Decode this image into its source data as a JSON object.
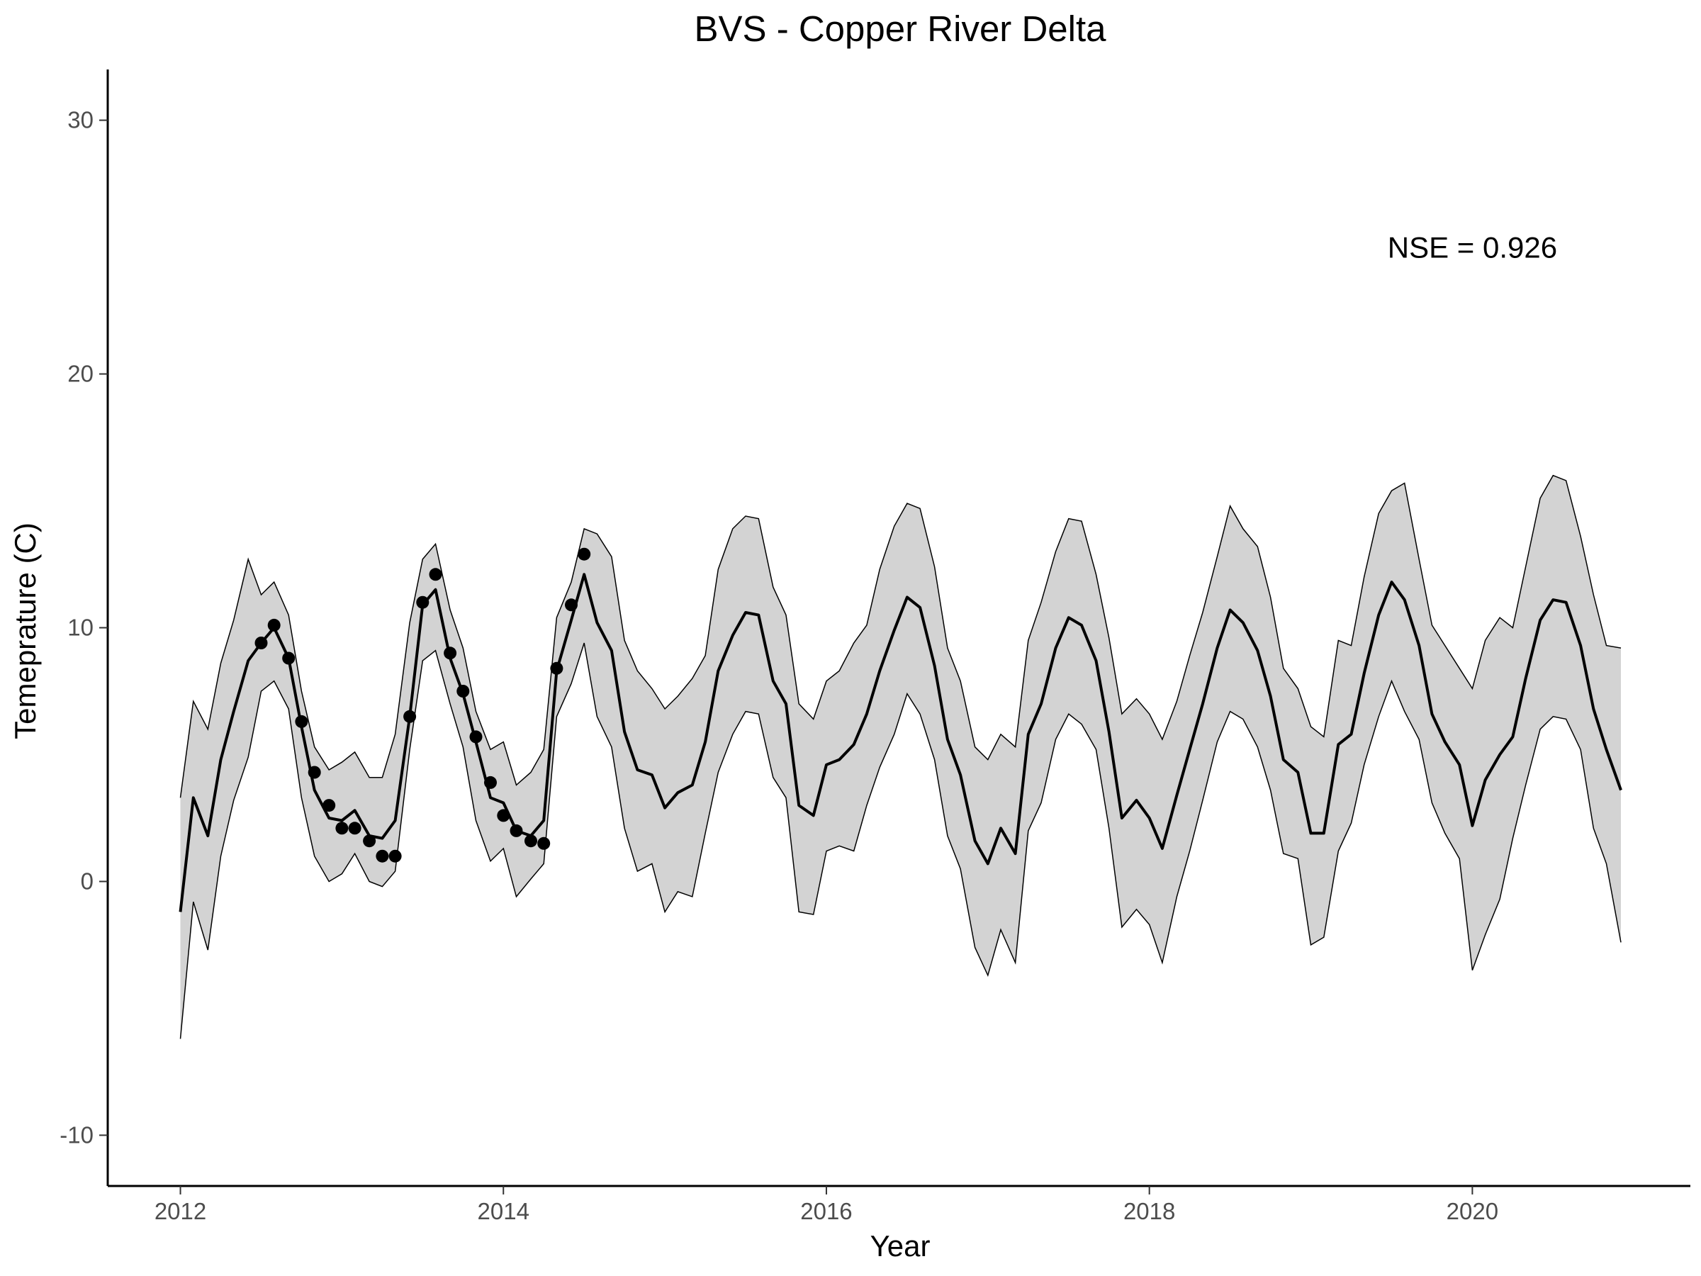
{
  "chart_data": {
    "type": "line",
    "title": "BVS - Copper River Delta",
    "xlabel": "Year",
    "ylabel": "Temeprature (C)",
    "annotation": {
      "text": "NSE = 0.926",
      "x": 2020.0,
      "y": 25
    },
    "xlim": [
      2011.55,
      2021.35
    ],
    "ylim": [
      -12,
      32
    ],
    "xticks": [
      2012,
      2014,
      2016,
      2018,
      2020
    ],
    "yticks": [
      -10,
      0,
      10,
      20,
      30
    ],
    "grid": false,
    "colors": {
      "line": "#000000",
      "band_fill": "#d3d3d3",
      "band_edge": "#000000",
      "points": "#000000"
    },
    "series": [
      {
        "role": "prediction-interval",
        "x": [
          2012.0,
          2012.08,
          2012.17,
          2012.25,
          2012.33,
          2012.42,
          2012.5,
          2012.58,
          2012.67,
          2012.75,
          2012.83,
          2012.92,
          2013.0,
          2013.08,
          2013.17,
          2013.25,
          2013.33,
          2013.42,
          2013.5,
          2013.58,
          2013.67,
          2013.75,
          2013.83,
          2013.92,
          2014.0,
          2014.08,
          2014.17,
          2014.25,
          2014.33,
          2014.42,
          2014.5,
          2014.58,
          2014.67,
          2014.75,
          2014.83,
          2014.92,
          2015.0,
          2015.08,
          2015.17,
          2015.25,
          2015.33,
          2015.42,
          2015.5,
          2015.58,
          2015.67,
          2015.75,
          2015.83,
          2015.92,
          2016.0,
          2016.08,
          2016.17,
          2016.25,
          2016.33,
          2016.42,
          2016.5,
          2016.58,
          2016.67,
          2016.75,
          2016.83,
          2016.92,
          2017.0,
          2017.08,
          2017.17,
          2017.25,
          2017.33,
          2017.42,
          2017.5,
          2017.58,
          2017.67,
          2017.75,
          2017.83,
          2017.92,
          2018.0,
          2018.08,
          2018.17,
          2018.25,
          2018.33,
          2018.42,
          2018.5,
          2018.58,
          2018.67,
          2018.75,
          2018.83,
          2018.92,
          2019.0,
          2019.08,
          2019.17,
          2019.25,
          2019.33,
          2019.42,
          2019.5,
          2019.58,
          2019.67,
          2019.75,
          2019.83,
          2019.92,
          2020.0,
          2020.08,
          2020.17,
          2020.25,
          2020.33,
          2020.42,
          2020.5,
          2020.58,
          2020.67,
          2020.75,
          2020.83,
          2020.92
        ],
        "upper": [
          3.3,
          7.1,
          6.0,
          8.6,
          10.3,
          12.7,
          11.3,
          11.8,
          10.5,
          7.5,
          5.3,
          4.4,
          4.7,
          5.1,
          4.1,
          4.1,
          5.8,
          10.2,
          12.7,
          13.3,
          10.7,
          9.2,
          6.7,
          5.2,
          5.5,
          3.8,
          4.3,
          5.2,
          10.4,
          11.8,
          13.9,
          13.7,
          12.8,
          9.5,
          8.3,
          7.6,
          6.8,
          7.3,
          8.0,
          8.9,
          12.3,
          13.9,
          14.4,
          14.3,
          11.6,
          10.5,
          7.0,
          6.4,
          7.9,
          8.3,
          9.4,
          10.1,
          12.3,
          14.0,
          14.9,
          14.7,
          12.4,
          9.2,
          7.9,
          5.3,
          4.8,
          5.8,
          5.3,
          9.5,
          11.0,
          13.0,
          14.3,
          14.2,
          12.1,
          9.6,
          6.6,
          7.2,
          6.6,
          5.6,
          7.1,
          8.9,
          10.6,
          12.8,
          14.8,
          13.9,
          13.2,
          11.2,
          8.4,
          7.6,
          6.1,
          5.7,
          9.5,
          9.3,
          12.0,
          14.5,
          15.4,
          15.7,
          12.7,
          10.1,
          9.3,
          8.4,
          7.6,
          9.5,
          10.4,
          10.0,
          12.4,
          15.1,
          16.0,
          15.8,
          13.6,
          11.3,
          9.3,
          9.2
        ],
        "lower": [
          -6.2,
          -0.8,
          -2.7,
          1.0,
          3.2,
          4.9,
          7.5,
          7.9,
          6.8,
          3.3,
          1.0,
          0.0,
          0.3,
          1.1,
          0.0,
          -0.2,
          0.4,
          5.2,
          8.7,
          9.1,
          7.0,
          5.3,
          2.4,
          0.8,
          1.3,
          -0.6,
          0.1,
          0.7,
          6.5,
          7.8,
          9.4,
          6.5,
          5.3,
          2.1,
          0.4,
          0.7,
          -1.2,
          -0.4,
          -0.6,
          1.9,
          4.3,
          5.8,
          6.7,
          6.6,
          4.1,
          3.3,
          -1.2,
          -1.3,
          1.2,
          1.4,
          1.2,
          3.0,
          4.5,
          5.8,
          7.4,
          6.6,
          4.8,
          1.8,
          0.5,
          -2.6,
          -3.7,
          -1.9,
          -3.2,
          2.0,
          3.1,
          5.6,
          6.6,
          6.2,
          5.2,
          2.1,
          -1.8,
          -1.1,
          -1.7,
          -3.2,
          -0.6,
          1.2,
          3.2,
          5.5,
          6.7,
          6.4,
          5.3,
          3.6,
          1.1,
          0.9,
          -2.5,
          -2.2,
          1.2,
          2.3,
          4.6,
          6.5,
          7.9,
          6.7,
          5.6,
          3.1,
          1.9,
          0.9,
          -3.5,
          -2.1,
          -0.7,
          1.7,
          3.8,
          6.0,
          6.5,
          6.4,
          5.2,
          2.1,
          0.7,
          -2.4
        ]
      },
      {
        "name": "",
        "role": "predicted",
        "x": [
          2012.0,
          2012.08,
          2012.17,
          2012.25,
          2012.33,
          2012.42,
          2012.5,
          2012.58,
          2012.67,
          2012.75,
          2012.83,
          2012.92,
          2013.0,
          2013.08,
          2013.17,
          2013.25,
          2013.33,
          2013.42,
          2013.5,
          2013.58,
          2013.67,
          2013.75,
          2013.83,
          2013.92,
          2014.0,
          2014.08,
          2014.17,
          2014.25,
          2014.33,
          2014.42,
          2014.5,
          2014.58,
          2014.67,
          2014.75,
          2014.83,
          2014.92,
          2015.0,
          2015.08,
          2015.17,
          2015.25,
          2015.33,
          2015.42,
          2015.5,
          2015.58,
          2015.67,
          2015.75,
          2015.83,
          2015.92,
          2016.0,
          2016.08,
          2016.17,
          2016.25,
          2016.33,
          2016.42,
          2016.5,
          2016.58,
          2016.67,
          2016.75,
          2016.83,
          2016.92,
          2017.0,
          2017.08,
          2017.17,
          2017.25,
          2017.33,
          2017.42,
          2017.5,
          2017.58,
          2017.67,
          2017.75,
          2017.83,
          2017.92,
          2018.0,
          2018.08,
          2018.17,
          2018.25,
          2018.33,
          2018.42,
          2018.5,
          2018.58,
          2018.67,
          2018.75,
          2018.83,
          2018.92,
          2019.0,
          2019.08,
          2019.17,
          2019.25,
          2019.33,
          2019.42,
          2019.5,
          2019.58,
          2019.67,
          2019.75,
          2019.83,
          2019.92,
          2020.0,
          2020.08,
          2020.17,
          2020.25,
          2020.33,
          2020.42,
          2020.5,
          2020.58,
          2020.67,
          2020.75,
          2020.83,
          2020.92
        ],
        "values": [
          -1.2,
          3.3,
          1.8,
          4.8,
          6.7,
          8.7,
          9.4,
          10.0,
          8.8,
          6.1,
          3.6,
          2.5,
          2.4,
          2.8,
          1.8,
          1.7,
          2.4,
          6.5,
          10.9,
          11.5,
          8.8,
          7.4,
          5.5,
          3.3,
          3.1,
          2.0,
          1.8,
          2.4,
          8.3,
          10.3,
          12.1,
          10.2,
          9.1,
          5.9,
          4.4,
          4.2,
          2.9,
          3.5,
          3.8,
          5.5,
          8.3,
          9.7,
          10.6,
          10.5,
          7.9,
          7.0,
          3.0,
          2.6,
          4.6,
          4.8,
          5.4,
          6.6,
          8.3,
          9.9,
          11.2,
          10.8,
          8.5,
          5.6,
          4.2,
          1.6,
          0.7,
          2.1,
          1.1,
          5.8,
          7.0,
          9.2,
          10.4,
          10.1,
          8.7,
          5.9,
          2.5,
          3.2,
          2.5,
          1.3,
          3.4,
          5.2,
          7.0,
          9.2,
          10.7,
          10.2,
          9.1,
          7.3,
          4.8,
          4.3,
          1.9,
          1.9,
          5.4,
          5.8,
          8.2,
          10.5,
          11.8,
          11.1,
          9.3,
          6.6,
          5.5,
          4.6,
          2.2,
          4.0,
          5.0,
          5.7,
          8.0,
          10.3,
          11.1,
          11.0,
          9.3,
          6.8,
          5.2,
          3.6
        ]
      },
      {
        "name": "",
        "role": "observed",
        "x": [
          2012.5,
          2012.58,
          2012.67,
          2012.75,
          2012.83,
          2012.92,
          2013.0,
          2013.08,
          2013.17,
          2013.25,
          2013.33,
          2013.42,
          2013.5,
          2013.58,
          2013.67,
          2013.75,
          2013.83,
          2013.92,
          2014.0,
          2014.08,
          2014.17,
          2014.25,
          2014.33,
          2014.42,
          2014.5
        ],
        "values": [
          9.4,
          10.1,
          8.8,
          6.3,
          4.3,
          3.0,
          2.1,
          2.1,
          1.6,
          1.0,
          1.0,
          6.5,
          11.0,
          12.1,
          9.0,
          7.5,
          5.7,
          3.9,
          2.6,
          2.0,
          1.6,
          1.5,
          8.4,
          10.9,
          12.9
        ]
      }
    ]
  }
}
